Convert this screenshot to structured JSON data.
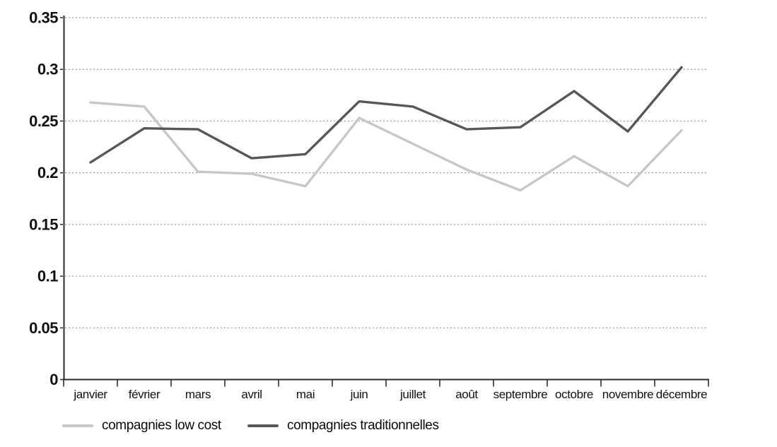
{
  "chart_data": {
    "type": "line",
    "title": "",
    "xlabel": "",
    "ylabel": "",
    "categories": [
      "janvier",
      "février",
      "mars",
      "avril",
      "mai",
      "juin",
      "juillet",
      "août",
      "septembre",
      "octobre",
      "novembre",
      "décembre"
    ],
    "series": [
      {
        "name": "compagnies low cost",
        "color": "#c6c7c9",
        "values": [
          0.268,
          0.264,
          0.201,
          0.199,
          0.187,
          0.253,
          0.228,
          0.203,
          0.183,
          0.216,
          0.187,
          0.241
        ]
      },
      {
        "name": "compagnies traditionnelles",
        "color": "#57575a",
        "values": [
          0.21,
          0.243,
          0.242,
          0.214,
          0.218,
          0.269,
          0.264,
          0.242,
          0.244,
          0.279,
          0.24,
          0.302
        ]
      }
    ],
    "y_axis": {
      "min": 0,
      "max": 0.35,
      "tick_step": 0.05,
      "tick_labels": [
        "0",
        "0.05",
        "0.1",
        "0.15",
        "0.2",
        "0.25",
        "0.3",
        "0.35"
      ]
    },
    "grid": "horizontal dashed",
    "legend_position": "bottom"
  },
  "styles": {
    "background": "#ffffff",
    "axis_color": "#2b2b2b",
    "grid_color": "#9b9b9b",
    "text_color": "#111111"
  }
}
